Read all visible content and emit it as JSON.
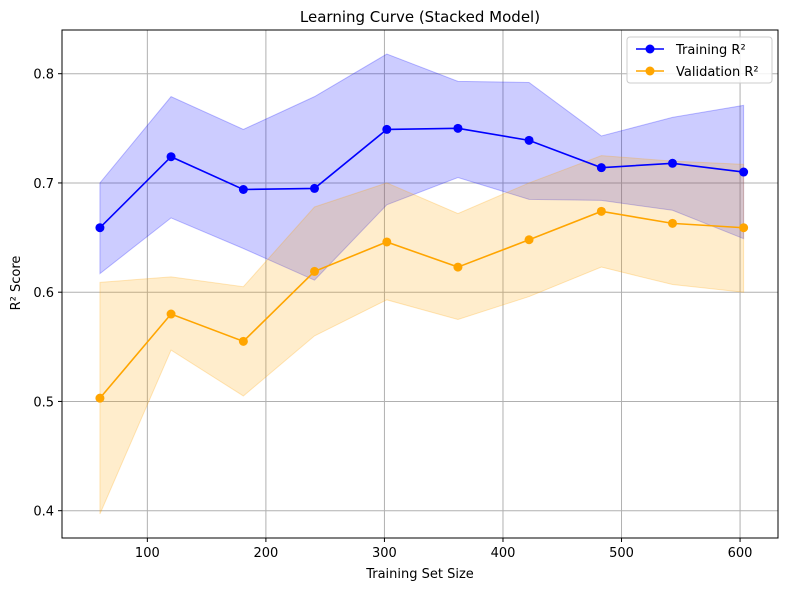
{
  "chart_data": {
    "type": "line",
    "title": "Learning Curve (Stacked Model)",
    "xlabel": "Training Set Size",
    "ylabel": "R² Score",
    "xlim": [
      28,
      632
    ],
    "ylim": [
      0.375,
      0.84
    ],
    "xticks": [
      100,
      200,
      300,
      400,
      500,
      600
    ],
    "yticks": [
      0.4,
      0.5,
      0.6,
      0.7,
      0.8
    ],
    "x": [
      60,
      120,
      181,
      241,
      302,
      362,
      422,
      483,
      543,
      603
    ],
    "grid": true,
    "legend_position": "top-right",
    "series": [
      {
        "name": "Training R²",
        "color": "#0000ff",
        "values": [
          0.659,
          0.724,
          0.694,
          0.695,
          0.749,
          0.75,
          0.739,
          0.714,
          0.718,
          0.71
        ],
        "band_upper": [
          0.7,
          0.779,
          0.749,
          0.779,
          0.818,
          0.793,
          0.792,
          0.743,
          0.76,
          0.771
        ],
        "band_lower": [
          0.617,
          0.668,
          0.64,
          0.611,
          0.68,
          0.705,
          0.685,
          0.684,
          0.675,
          0.649
        ]
      },
      {
        "name": "Validation R²",
        "color": "#ffa500",
        "values": [
          0.503,
          0.58,
          0.555,
          0.619,
          0.646,
          0.623,
          0.648,
          0.674,
          0.663,
          0.659
        ],
        "band_upper": [
          0.609,
          0.614,
          0.605,
          0.678,
          0.7,
          0.672,
          0.7,
          0.725,
          0.72,
          0.717
        ],
        "band_lower": [
          0.397,
          0.547,
          0.505,
          0.56,
          0.593,
          0.575,
          0.596,
          0.623,
          0.607,
          0.6
        ]
      }
    ]
  }
}
